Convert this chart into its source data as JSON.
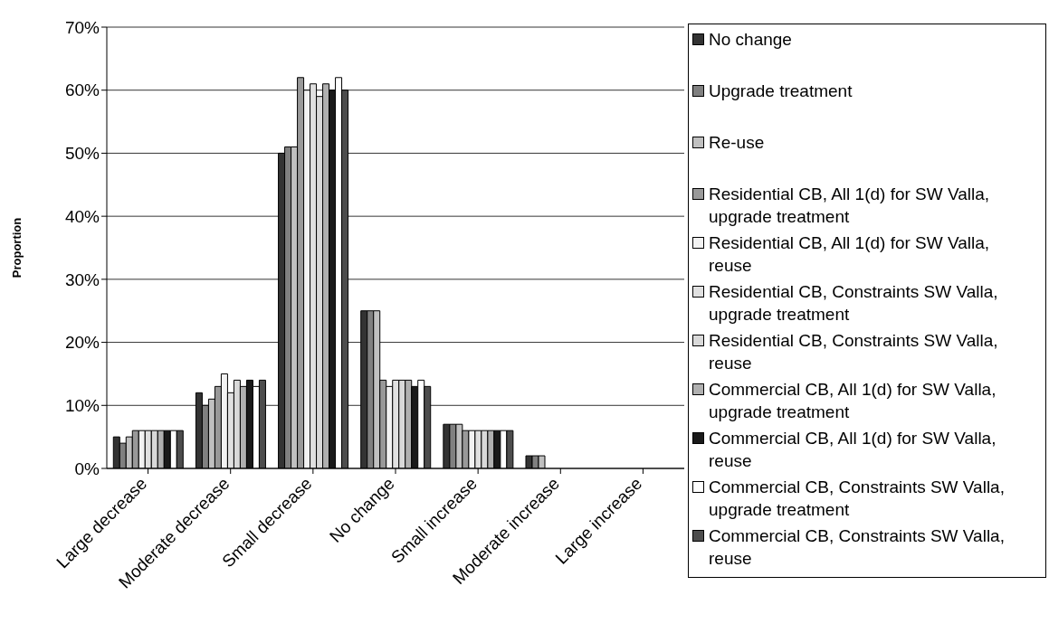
{
  "chart_data": {
    "type": "bar",
    "ylabel": "Proportion",
    "categories": [
      "Large decrease",
      "Moderate decrease",
      "Small decrease",
      "No change",
      "Small increase",
      "Moderate increase",
      "Large increase"
    ],
    "series": [
      {
        "name": "No change",
        "color": "#333333",
        "values": [
          5,
          12,
          50,
          25,
          7,
          2,
          0
        ]
      },
      {
        "name": "Upgrade treatment",
        "color": "#808080",
        "values": [
          4,
          10,
          51,
          25,
          7,
          2,
          0
        ]
      },
      {
        "name": "Re-use",
        "color": "#c0c0c0",
        "values": [
          5,
          11,
          51,
          25,
          7,
          2,
          0
        ]
      },
      {
        "name": "Residential CB, All 1(d) for SW Valla, upgrade treatment",
        "color": "#999999",
        "values": [
          6,
          13,
          62,
          14,
          6,
          0,
          0
        ]
      },
      {
        "name": "Residential CB, All 1(d) for SW Valla, reuse",
        "color": "#f2f2f2",
        "values": [
          6,
          15,
          60,
          13,
          6,
          0,
          0
        ]
      },
      {
        "name": "Residential CB, Constraints SW Valla, upgrade treatment",
        "color": "#e0e0e0",
        "values": [
          6,
          12,
          61,
          14,
          6,
          0,
          0
        ]
      },
      {
        "name": "Residential CB, Constraints SW Valla, reuse",
        "color": "#d9d9d9",
        "values": [
          6,
          14,
          59,
          14,
          6,
          0,
          0
        ]
      },
      {
        "name": "Commercial CB, All 1(d) for SW Valla, upgrade treatment",
        "color": "#b0b0b0",
        "values": [
          6,
          13,
          61,
          14,
          6,
          0,
          0
        ]
      },
      {
        "name": "Commercial CB, All 1(d) for SW Valla, reuse",
        "color": "#1a1a1a",
        "values": [
          6,
          14,
          60,
          13,
          6,
          0,
          0
        ]
      },
      {
        "name": "Commercial CB, Constraints SW Valla, upgrade treatment",
        "color": "#ffffff",
        "values": [
          6,
          13,
          62,
          14,
          6,
          0,
          0
        ]
      },
      {
        "name": "Commercial CB, Constraints SW Valla, reuse",
        "color": "#4d4d4d",
        "values": [
          6,
          14,
          60,
          13,
          6,
          0,
          0
        ]
      }
    ],
    "ylim": [
      0,
      70
    ],
    "yticks": [
      {
        "value": 0,
        "label": "0%"
      },
      {
        "value": 10,
        "label": "10%"
      },
      {
        "value": 20,
        "label": "20%"
      },
      {
        "value": 30,
        "label": "30%"
      },
      {
        "value": 40,
        "label": "40%"
      },
      {
        "value": 50,
        "label": "50%"
      },
      {
        "value": 60,
        "label": "60%"
      },
      {
        "value": 70,
        "label": "70%"
      }
    ],
    "grid": "y",
    "legend": "right"
  }
}
